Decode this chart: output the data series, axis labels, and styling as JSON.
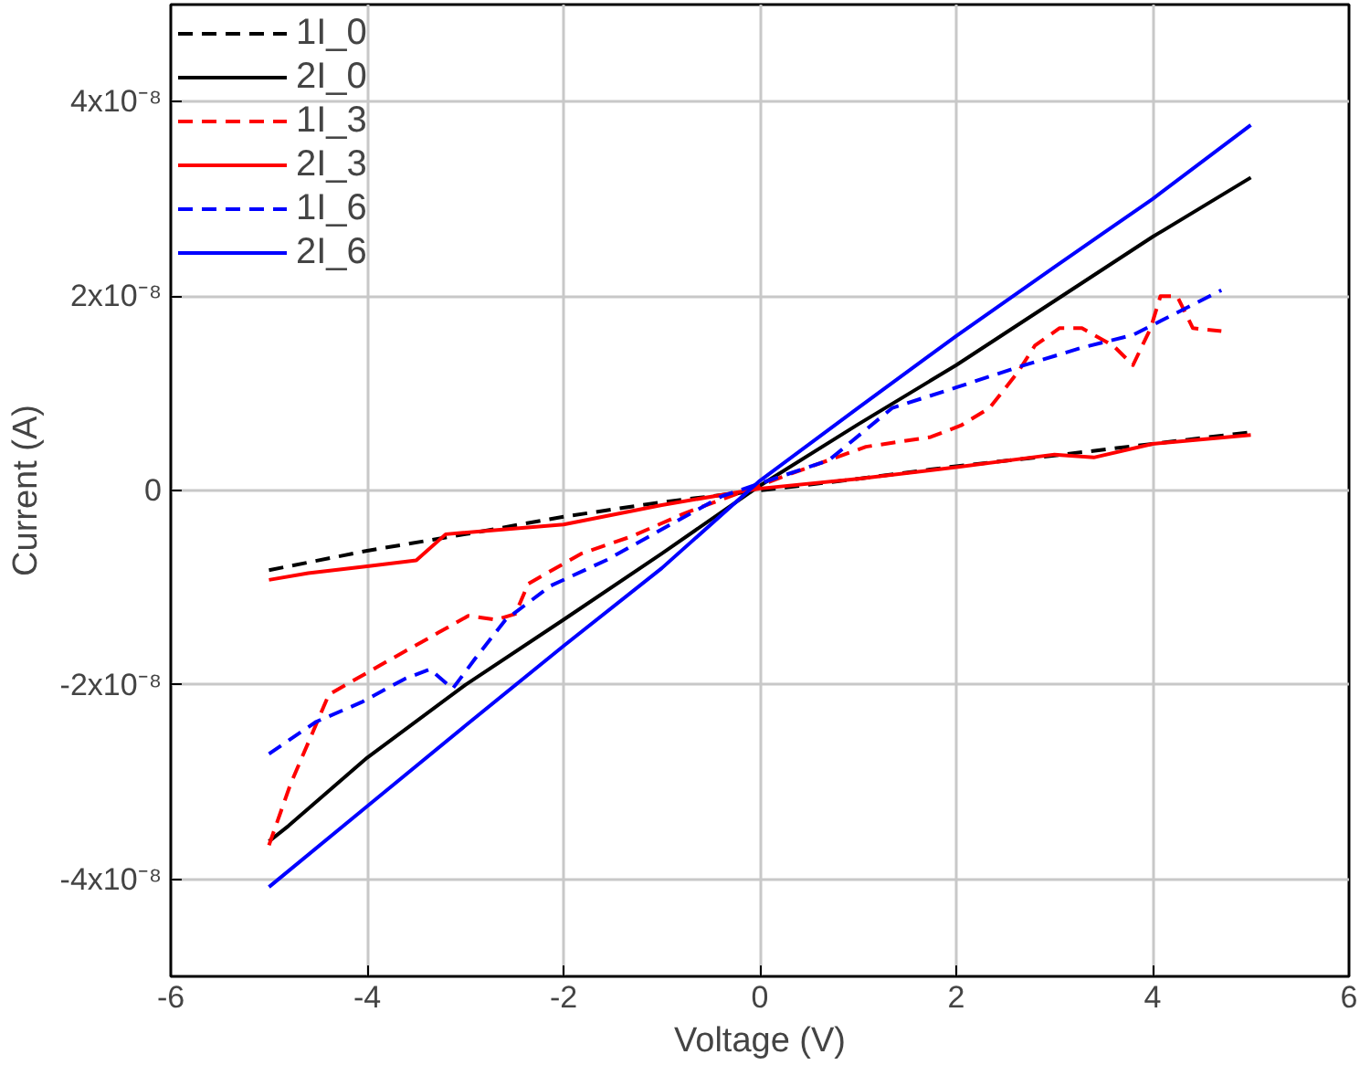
{
  "chart_data": {
    "type": "line",
    "xlabel": "Voltage (V)",
    "ylabel": "Current (A)",
    "xlim": [
      -6,
      6
    ],
    "xticks": [
      -6,
      -4,
      -2,
      0,
      2,
      4,
      6
    ],
    "ylim": [
      -5e-08,
      5e-08
    ],
    "yticks": [
      {
        "value": -4e-08,
        "label": "-4x10⁻⁸"
      },
      {
        "value": -2e-08,
        "label": "-2x10⁻⁸"
      },
      {
        "value": 0,
        "label": "0"
      },
      {
        "value": 2e-08,
        "label": "2x10⁻⁸"
      },
      {
        "value": 4e-08,
        "label": "4x10⁻⁸"
      }
    ],
    "grid": true,
    "legend": "top left",
    "marker": "none",
    "series": [
      {
        "name": "1I_0",
        "color": "#000000",
        "line_style": "dashed",
        "x": [
          -5,
          -4,
          -3,
          -2,
          -1,
          1,
          2,
          3,
          4,
          5
        ],
        "values": [
          -8.2e-09,
          -6.2e-09,
          -4.5e-09,
          -2.7e-09,
          -1.2e-09,
          1.2e-09,
          2.5e-09,
          3.6e-09,
          4.8e-09,
          6e-09
        ]
      },
      {
        "name": "2I_0",
        "color": "#000000",
        "line_style": "solid",
        "x": [
          -5,
          -4.8,
          -4,
          -3,
          -2,
          -1,
          0,
          1,
          2,
          3,
          4,
          5
        ],
        "values": [
          -3.61e-08,
          -3.45e-08,
          -2.75e-08,
          -2e-08,
          -1.33e-08,
          -6.5e-09,
          5e-10,
          6.8e-09,
          1.29e-08,
          1.95e-08,
          2.61e-08,
          3.22e-08
        ]
      },
      {
        "name": "1I_3",
        "color": "#ff0000",
        "line_style": "dashed",
        "x": [
          -5,
          -4.78,
          -4.39,
          -3.87,
          -3.27,
          -2.97,
          -2.69,
          -2.49,
          -2.36,
          -1.82,
          -1.3,
          -0.78,
          0.31,
          1.08,
          1.74,
          2.05,
          2.34,
          2.63,
          2.8,
          3.05,
          3.28,
          3.6,
          3.8,
          3.98,
          4.08,
          4.25,
          4.41,
          4.7
        ],
        "values": [
          -3.65e-08,
          -3.02e-08,
          -2.1e-08,
          -1.8e-08,
          -1.46e-08,
          -1.29e-08,
          -1.33e-08,
          -1.27e-08,
          -9.6e-09,
          -6.5e-09,
          -4.7e-09,
          -2.4e-09,
          1.7e-09,
          4.5e-09,
          5.5e-09,
          6.7e-09,
          8.5e-09,
          1.22e-08,
          1.49e-08,
          1.67e-08,
          1.67e-08,
          1.49e-08,
          1.29e-08,
          1.67e-08,
          2e-08,
          2e-08,
          1.67e-08,
          1.64e-08
        ]
      },
      {
        "name": "2I_3",
        "color": "#ff0000",
        "line_style": "solid",
        "x": [
          -5,
          -4.6,
          -4,
          -3.5,
          -3.2,
          -2,
          -1,
          0,
          1,
          2,
          3,
          3.4,
          4,
          5
        ],
        "values": [
          -9.2e-09,
          -8.5e-09,
          -7.8e-09,
          -7.2e-09,
          -4.5e-09,
          -3.5e-09,
          -1.5e-09,
          2e-10,
          1.2e-09,
          2.4e-09,
          3.7e-09,
          3.4e-09,
          4.8e-09,
          5.7e-09
        ]
      },
      {
        "name": "1I_6",
        "color": "#0000ff",
        "line_style": "dashed",
        "x": [
          -5,
          -4.52,
          -4.06,
          -3.62,
          -3.36,
          -3.13,
          -2.9,
          -2.59,
          -2.13,
          -1.55,
          -0.91,
          -0.39,
          0.7,
          1.35,
          2.0,
          2.63,
          3.28,
          3.8,
          4.7
        ],
        "values": [
          -2.71e-08,
          -2.38e-08,
          -2.18e-08,
          -1.94e-08,
          -1.84e-08,
          -2.04e-08,
          -1.73e-08,
          -1.33e-08,
          -9.8e-09,
          -7.1e-09,
          -3.5e-09,
          -6e-10,
          3.1e-09,
          8.5e-09,
          1.06e-08,
          1.27e-08,
          1.47e-08,
          1.6e-08,
          2.06e-08
        ]
      },
      {
        "name": "2I_6",
        "color": "#0000ff",
        "line_style": "solid",
        "x": [
          -5,
          -4,
          -3,
          -2,
          -1,
          0,
          1,
          2,
          3,
          4,
          5
        ],
        "values": [
          -4.08e-08,
          -3.25e-08,
          -2.42e-08,
          -1.6e-08,
          -8e-09,
          1e-09,
          8.5e-09,
          1.59e-08,
          2.3e-08,
          3e-08,
          3.76e-08
        ]
      }
    ]
  }
}
